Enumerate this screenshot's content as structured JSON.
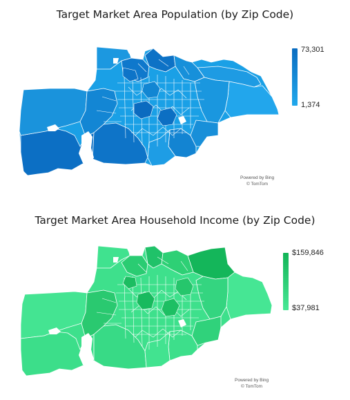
{
  "population_map": {
    "title": "Target Market Area Population (by Zip Code)",
    "legend_max": "73,301",
    "legend_min": "1,374",
    "color_high": "#0a6cc0",
    "color_low": "#20a8ec",
    "credit_line1": "Powered by Bing",
    "credit_line2": "© TomTom"
  },
  "income_map": {
    "title": "Target Market Area Household Income (by Zip Code)",
    "legend_max": "$159,846",
    "legend_min": "$37,981",
    "color_high": "#12b457",
    "color_low": "#48e896",
    "credit_line1": "Powered by Bing",
    "credit_line2": "© TomTom"
  }
}
